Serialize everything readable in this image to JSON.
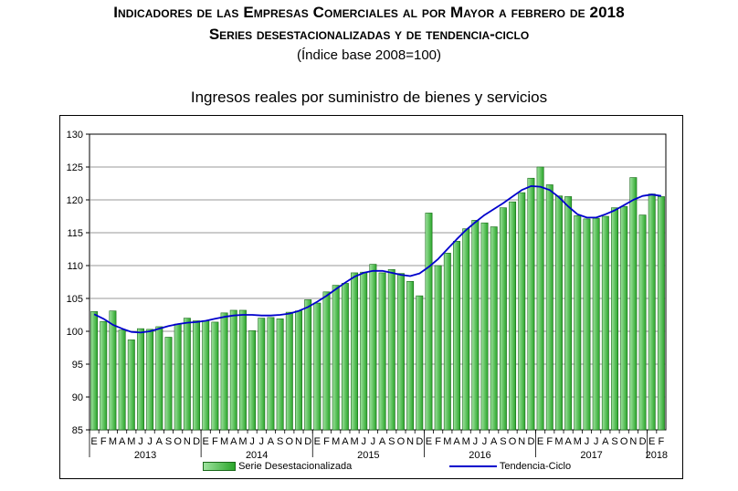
{
  "header": {
    "title": "Indicadores de las Empresas Comerciales al por Mayor a febrero de 2018",
    "subtitle": "Series desestacionalizadas y de tendencia-ciclo",
    "base_note": "(Índice base 2008=100)"
  },
  "colors": {
    "bar": "#2aa52a",
    "bar_light": "#9ee39e",
    "trend": "#0000cc"
  },
  "chart_data": {
    "type": "bar",
    "title": "Ingresos reales por suministro de bienes y servicios",
    "ylim": [
      85,
      130
    ],
    "yticks": [
      "85",
      "90",
      "95",
      "100",
      "105",
      "110",
      "115",
      "120",
      "125",
      "130"
    ],
    "grid": true,
    "legend_position": "bottom",
    "categories": [
      "E",
      "F",
      "M",
      "A",
      "M",
      "J",
      "J",
      "A",
      "S",
      "O",
      "N",
      "D",
      "E",
      "F",
      "M",
      "A",
      "M",
      "J",
      "J",
      "A",
      "S",
      "O",
      "N",
      "D",
      "E",
      "F",
      "M",
      "A",
      "M",
      "J",
      "J",
      "A",
      "S",
      "O",
      "N",
      "D",
      "E",
      "F",
      "M",
      "A",
      "M",
      "J",
      "J",
      "A",
      "S",
      "O",
      "N",
      "D",
      "E",
      "F",
      "M",
      "A",
      "M",
      "J",
      "J",
      "A",
      "S",
      "O",
      "N",
      "D",
      "E",
      "F"
    ],
    "years": [
      {
        "label": "2013",
        "start": 0,
        "end": 11
      },
      {
        "label": "2014",
        "start": 12,
        "end": 23
      },
      {
        "label": "2015",
        "start": 24,
        "end": 35
      },
      {
        "label": "2016",
        "start": 36,
        "end": 47
      },
      {
        "label": "2017",
        "start": 48,
        "end": 59
      },
      {
        "label": "2018",
        "start": 60,
        "end": 61
      }
    ],
    "series": [
      {
        "name": "Serie Desestacionalizada",
        "type": "bar",
        "values": [
          103.0,
          101.5,
          103.1,
          100.2,
          98.7,
          100.4,
          100.3,
          100.7,
          99.1,
          101.1,
          102.0,
          101.6,
          101.6,
          101.4,
          102.8,
          103.2,
          103.2,
          100.1,
          102.0,
          102.1,
          101.9,
          102.9,
          103.1,
          104.8,
          104.3,
          106.0,
          107.0,
          107.3,
          108.9,
          109.0,
          110.2,
          108.9,
          109.4,
          108.8,
          107.6,
          105.4,
          118.0,
          110.0,
          111.9,
          113.7,
          115.6,
          116.9,
          116.5,
          115.9,
          118.8,
          119.7,
          121.1,
          123.3,
          125.0,
          122.3,
          120.6,
          120.5,
          117.6,
          117.1,
          117.2,
          117.5,
          118.8,
          119.0,
          123.4,
          117.7,
          120.9,
          120.5
        ]
      },
      {
        "name": "Tendencia-Ciclo",
        "type": "line",
        "values": [
          102.6,
          101.9,
          101.0,
          100.4,
          99.9,
          99.8,
          100.0,
          100.4,
          100.8,
          101.1,
          101.3,
          101.4,
          101.6,
          101.9,
          102.2,
          102.4,
          102.5,
          102.5,
          102.4,
          102.4,
          102.5,
          102.7,
          103.1,
          103.7,
          104.5,
          105.4,
          106.4,
          107.4,
          108.3,
          108.9,
          109.2,
          109.2,
          108.9,
          108.6,
          108.4,
          108.8,
          109.8,
          111.0,
          112.5,
          114.0,
          115.4,
          116.6,
          117.7,
          118.6,
          119.5,
          120.5,
          121.5,
          122.1,
          122.0,
          121.5,
          120.4,
          119.0,
          117.8,
          117.3,
          117.3,
          117.8,
          118.4,
          119.2,
          120.0,
          120.6,
          120.8,
          120.6
        ]
      }
    ]
  }
}
